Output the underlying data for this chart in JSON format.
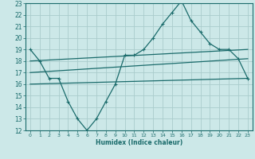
{
  "xlabel": "Humidex (Indice chaleur)",
  "xlim": [
    -0.5,
    23.5
  ],
  "ylim": [
    12,
    23
  ],
  "yticks": [
    12,
    13,
    14,
    15,
    16,
    17,
    18,
    19,
    20,
    21,
    22,
    23
  ],
  "xticks": [
    0,
    1,
    2,
    3,
    4,
    5,
    6,
    7,
    8,
    9,
    10,
    11,
    12,
    13,
    14,
    15,
    16,
    17,
    18,
    19,
    20,
    21,
    22,
    23
  ],
  "bg_color": "#cce8e8",
  "grid_color": "#aacccc",
  "line_color": "#1a6b6b",
  "curve_x": [
    0,
    1,
    2,
    3,
    4,
    5,
    6,
    7,
    8,
    9,
    10,
    11,
    12,
    13,
    14,
    15,
    16,
    17,
    18,
    19,
    20,
    21,
    22,
    23
  ],
  "curve_y": [
    19,
    18,
    16.5,
    16.5,
    14.5,
    13,
    12,
    13,
    14.5,
    16,
    18.5,
    18.5,
    19,
    20,
    21.2,
    22.2,
    23.2,
    21.5,
    20.5,
    19.5,
    19,
    19,
    18.2,
    16.5
  ],
  "line1_x": [
    0,
    23
  ],
  "line1_y": [
    18.0,
    19.0
  ],
  "line2_x": [
    0,
    23
  ],
  "line2_y": [
    17.0,
    18.2
  ],
  "line3_x": [
    0,
    23
  ],
  "line3_y": [
    16.0,
    16.5
  ]
}
